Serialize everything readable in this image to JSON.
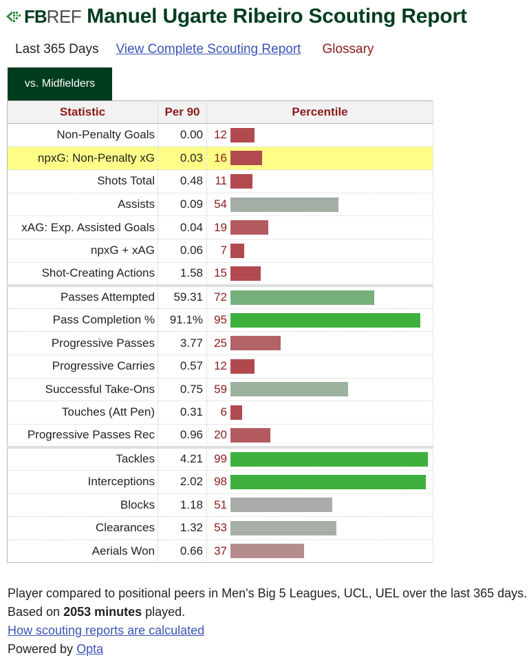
{
  "header": {
    "logo_fb": "FB",
    "logo_ref": "REF",
    "title": "Manuel Ugarte Ribeiro Scouting Report"
  },
  "subnav": {
    "current": "Last 365 Days",
    "complete_link": "View Complete Scouting Report",
    "glossary": "Glossary"
  },
  "tab": {
    "label": "vs. Midfielders"
  },
  "table": {
    "headers": {
      "statistic": "Statistic",
      "per90": "Per 90",
      "percentile": "Percentile"
    },
    "rows": [
      {
        "statistic": "Non-Penalty Goals",
        "per90": "0.00",
        "percentile": "12",
        "color": "#b04a4f"
      },
      {
        "statistic": "npxG: Non-Penalty xG",
        "per90": "0.03",
        "percentile": "16",
        "color": "#b04a4f"
      },
      {
        "statistic": "Shots Total",
        "per90": "0.48",
        "percentile": "11",
        "color": "#b04a4f"
      },
      {
        "statistic": "Assists",
        "per90": "0.09",
        "percentile": "54",
        "color": "#a3aea4"
      },
      {
        "statistic": "xAG: Exp. Assisted Goals",
        "per90": "0.04",
        "percentile": "19",
        "color": "#b35a60"
      },
      {
        "statistic": "npxG + xAG",
        "per90": "0.06",
        "percentile": "7",
        "color": "#b04a4f"
      },
      {
        "statistic": "Shot-Creating Actions",
        "per90": "1.58",
        "percentile": "15",
        "color": "#b04a4f"
      },
      {
        "statistic": "Passes Attempted",
        "per90": "59.31",
        "percentile": "72",
        "color": "#76b07c"
      },
      {
        "statistic": "Pass Completion %",
        "per90": "91.1%",
        "percentile": "95",
        "color": "#3db03d"
      },
      {
        "statistic": "Progressive Passes",
        "per90": "3.77",
        "percentile": "25",
        "color": "#b36267"
      },
      {
        "statistic": "Progressive Carries",
        "per90": "0.57",
        "percentile": "12",
        "color": "#b04a4f"
      },
      {
        "statistic": "Successful Take-Ons",
        "per90": "0.75",
        "percentile": "59",
        "color": "#9cb19e"
      },
      {
        "statistic": "Touches (Att Pen)",
        "per90": "0.31",
        "percentile": "6",
        "color": "#b04a4f"
      },
      {
        "statistic": "Progressive Passes Rec",
        "per90": "0.96",
        "percentile": "20",
        "color": "#b35a60"
      },
      {
        "statistic": "Tackles",
        "per90": "4.21",
        "percentile": "99",
        "color": "#3db03d"
      },
      {
        "statistic": "Interceptions",
        "per90": "2.02",
        "percentile": "98",
        "color": "#3db03d"
      },
      {
        "statistic": "Blocks",
        "per90": "1.18",
        "percentile": "51",
        "color": "#a9aca9"
      },
      {
        "statistic": "Clearances",
        "per90": "1.32",
        "percentile": "53",
        "color": "#a7aea7"
      },
      {
        "statistic": "Aerials Won",
        "per90": "0.66",
        "percentile": "37",
        "color": "#b48c8e"
      }
    ]
  },
  "footer": {
    "text_before": "Player compared to positional peers in Men's Big 5 Leagues, UCL, UEL over the last 365 days. Based on ",
    "minutes": "2053 minutes",
    "text_after": " played.",
    "how_link": "How scouting reports are calculated",
    "powered_by": "Powered by ",
    "opta_link": "Opta"
  }
}
